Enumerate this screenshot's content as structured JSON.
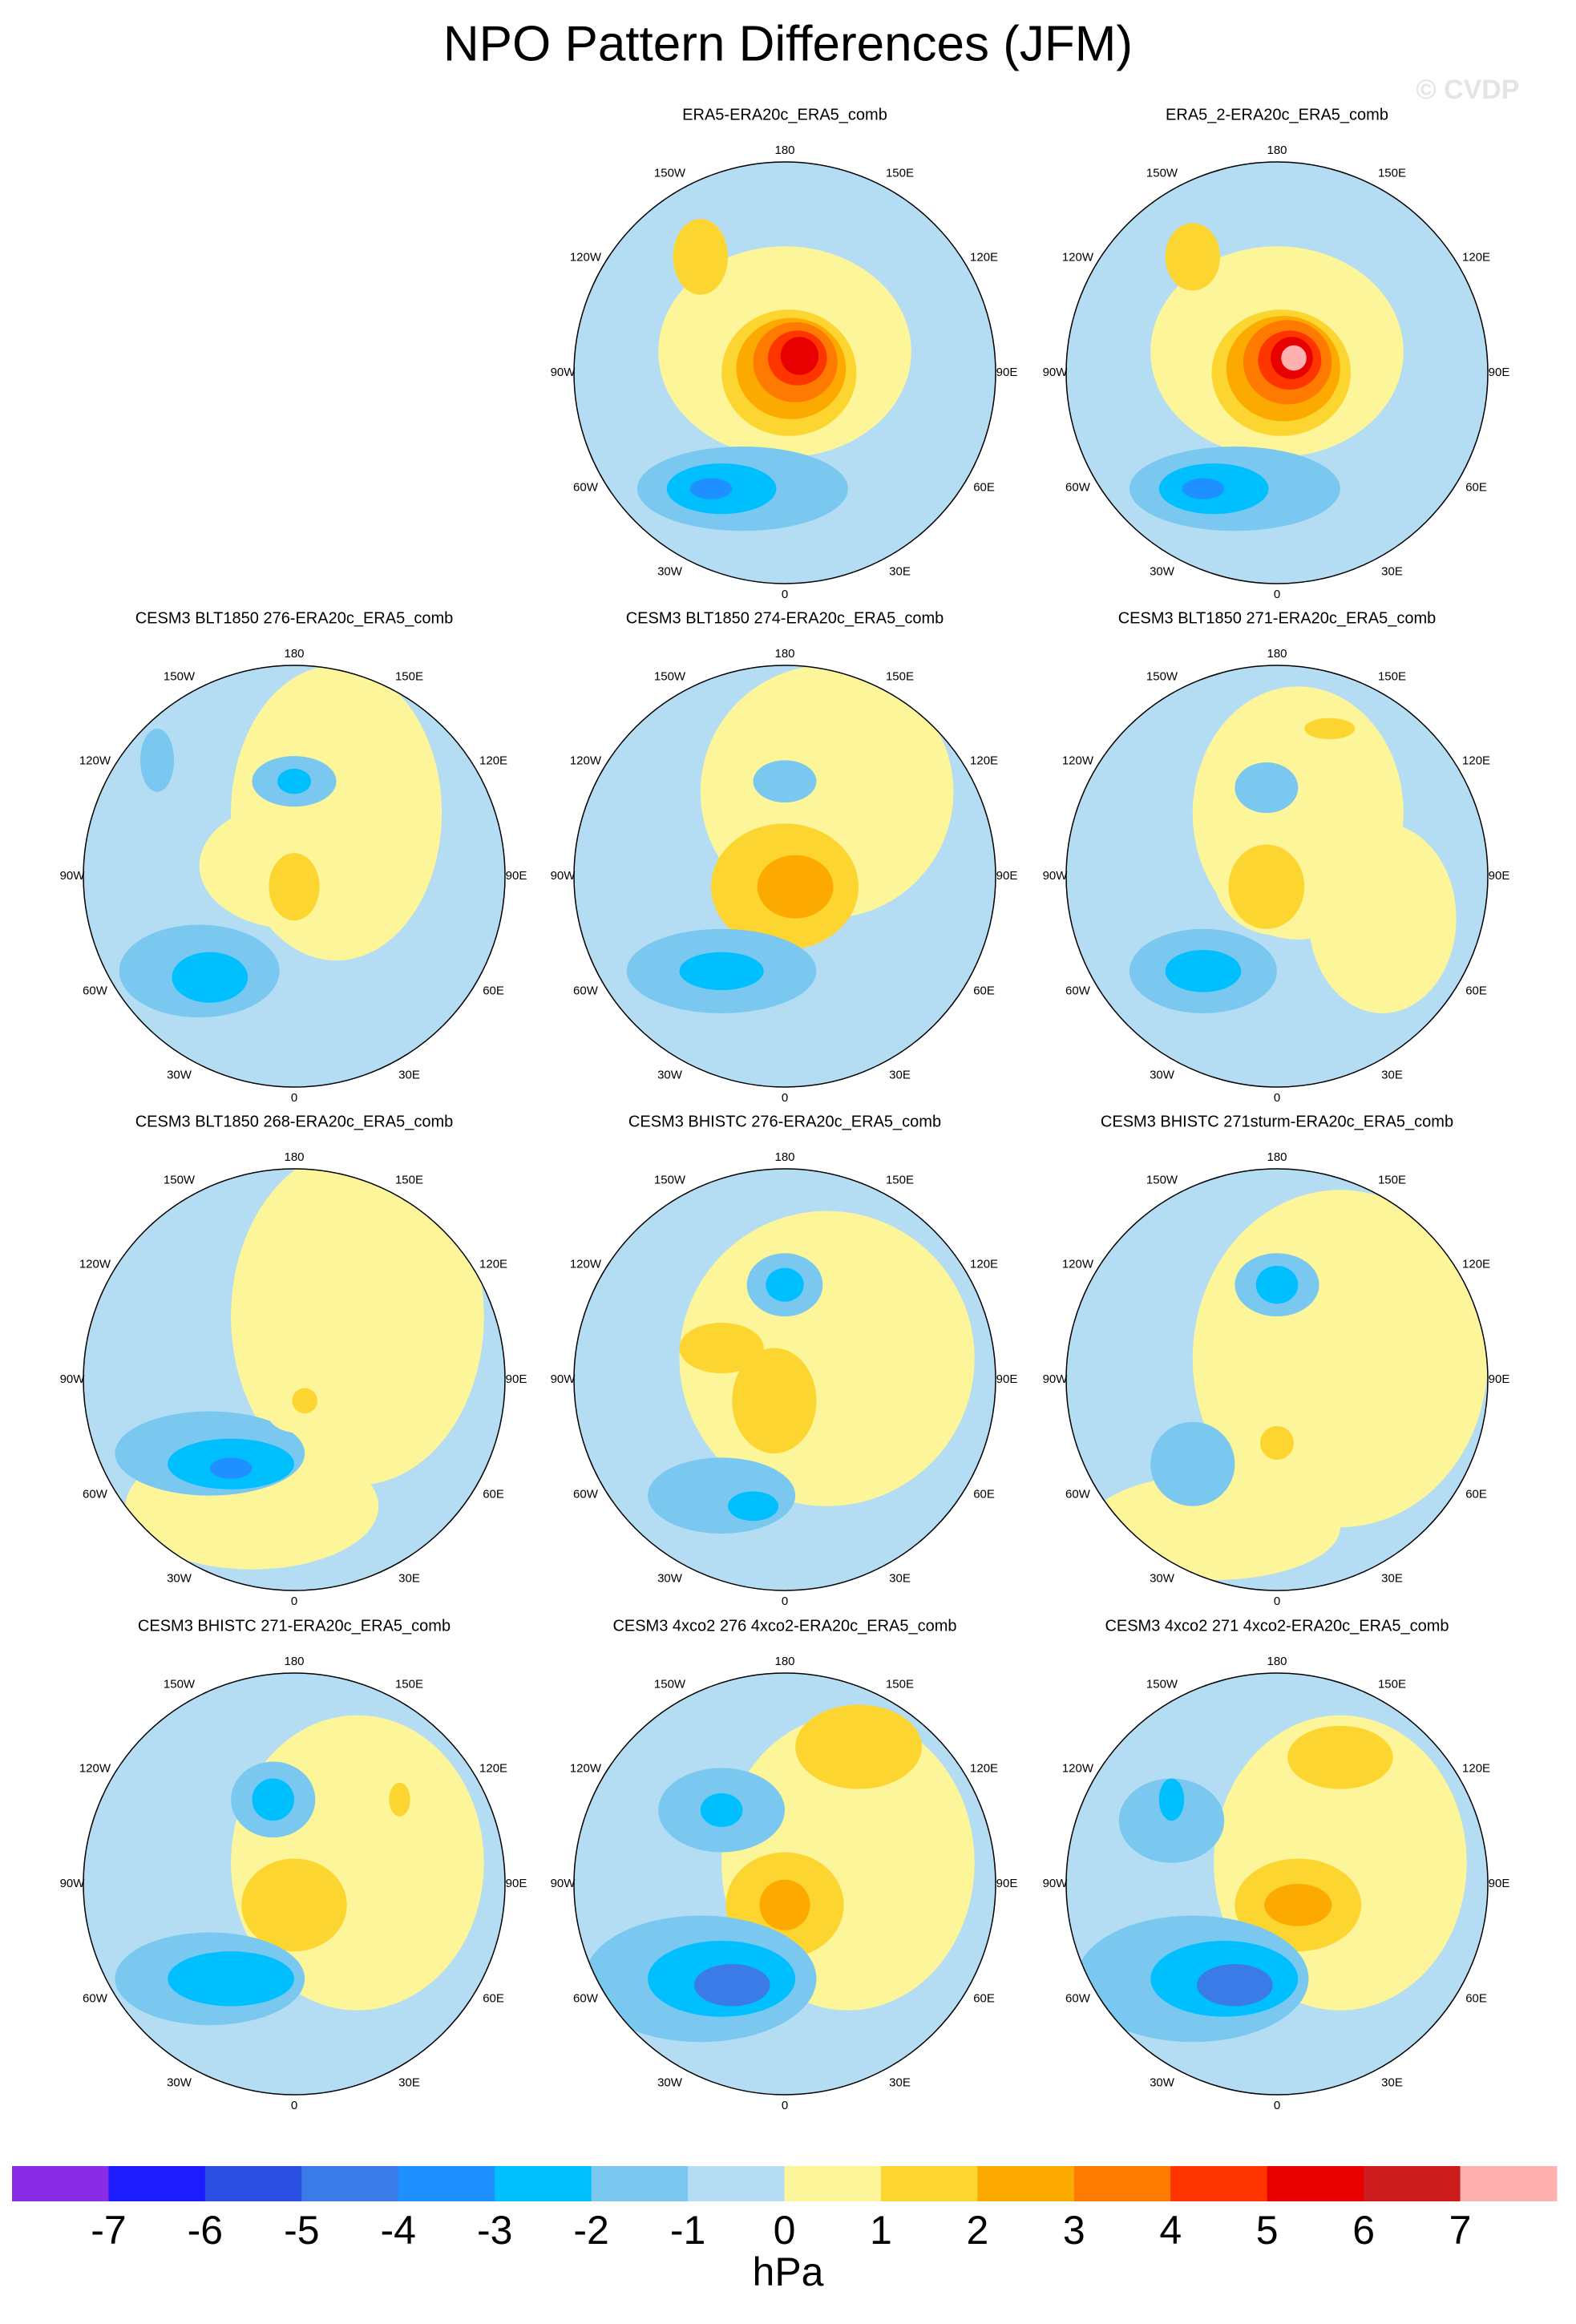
{
  "title": "NPO Pattern Differences (JFM)",
  "watermark": "© CVDP",
  "longitude_labels": [
    "180",
    "150E",
    "120E",
    "90E",
    "60E",
    "30E",
    "0",
    "30W",
    "60W",
    "90W",
    "120W",
    "150W"
  ],
  "panels": [
    {
      "title": "ERA5-ERA20c_ERA5_comb"
    },
    {
      "title": "ERA5_2-ERA20c_ERA5_comb"
    },
    {
      "title": "CESM3 BLT1850 276-ERA20c_ERA5_comb"
    },
    {
      "title": "CESM3 BLT1850 274-ERA20c_ERA5_comb"
    },
    {
      "title": "CESM3 BLT1850 271-ERA20c_ERA5_comb"
    },
    {
      "title": "CESM3 BLT1850 268-ERA20c_ERA5_comb"
    },
    {
      "title": "CESM3 BHISTC 276-ERA20c_ERA5_comb"
    },
    {
      "title": "CESM3 BHISTC 271sturm-ERA20c_ERA5_comb"
    },
    {
      "title": "CESM3 BHISTC 271-ERA20c_ERA5_comb"
    },
    {
      "title": "CESM3 4xco2 276 4xco2-ERA20c_ERA5_comb"
    },
    {
      "title": "CESM3 4xco2 271 4xco2-ERA20c_ERA5_comb"
    }
  ],
  "colorbar": {
    "colors": [
      "#8a2be8",
      "#1c1cff",
      "#2a4fe0",
      "#3a7be8",
      "#1e90ff",
      "#00bfff",
      "#7ac8f0",
      "#b4ddf4",
      "#fdf59a",
      "#fdd530",
      "#fdaa00",
      "#ff7a00",
      "#ff3500",
      "#e80000",
      "#cc1c1c",
      "#ffb0b0"
    ],
    "ticks": [
      -7,
      -6,
      -5,
      -4,
      -3,
      -2,
      -1,
      0,
      1,
      2,
      3,
      4,
      5,
      6,
      7
    ],
    "unit": "hPa"
  }
}
